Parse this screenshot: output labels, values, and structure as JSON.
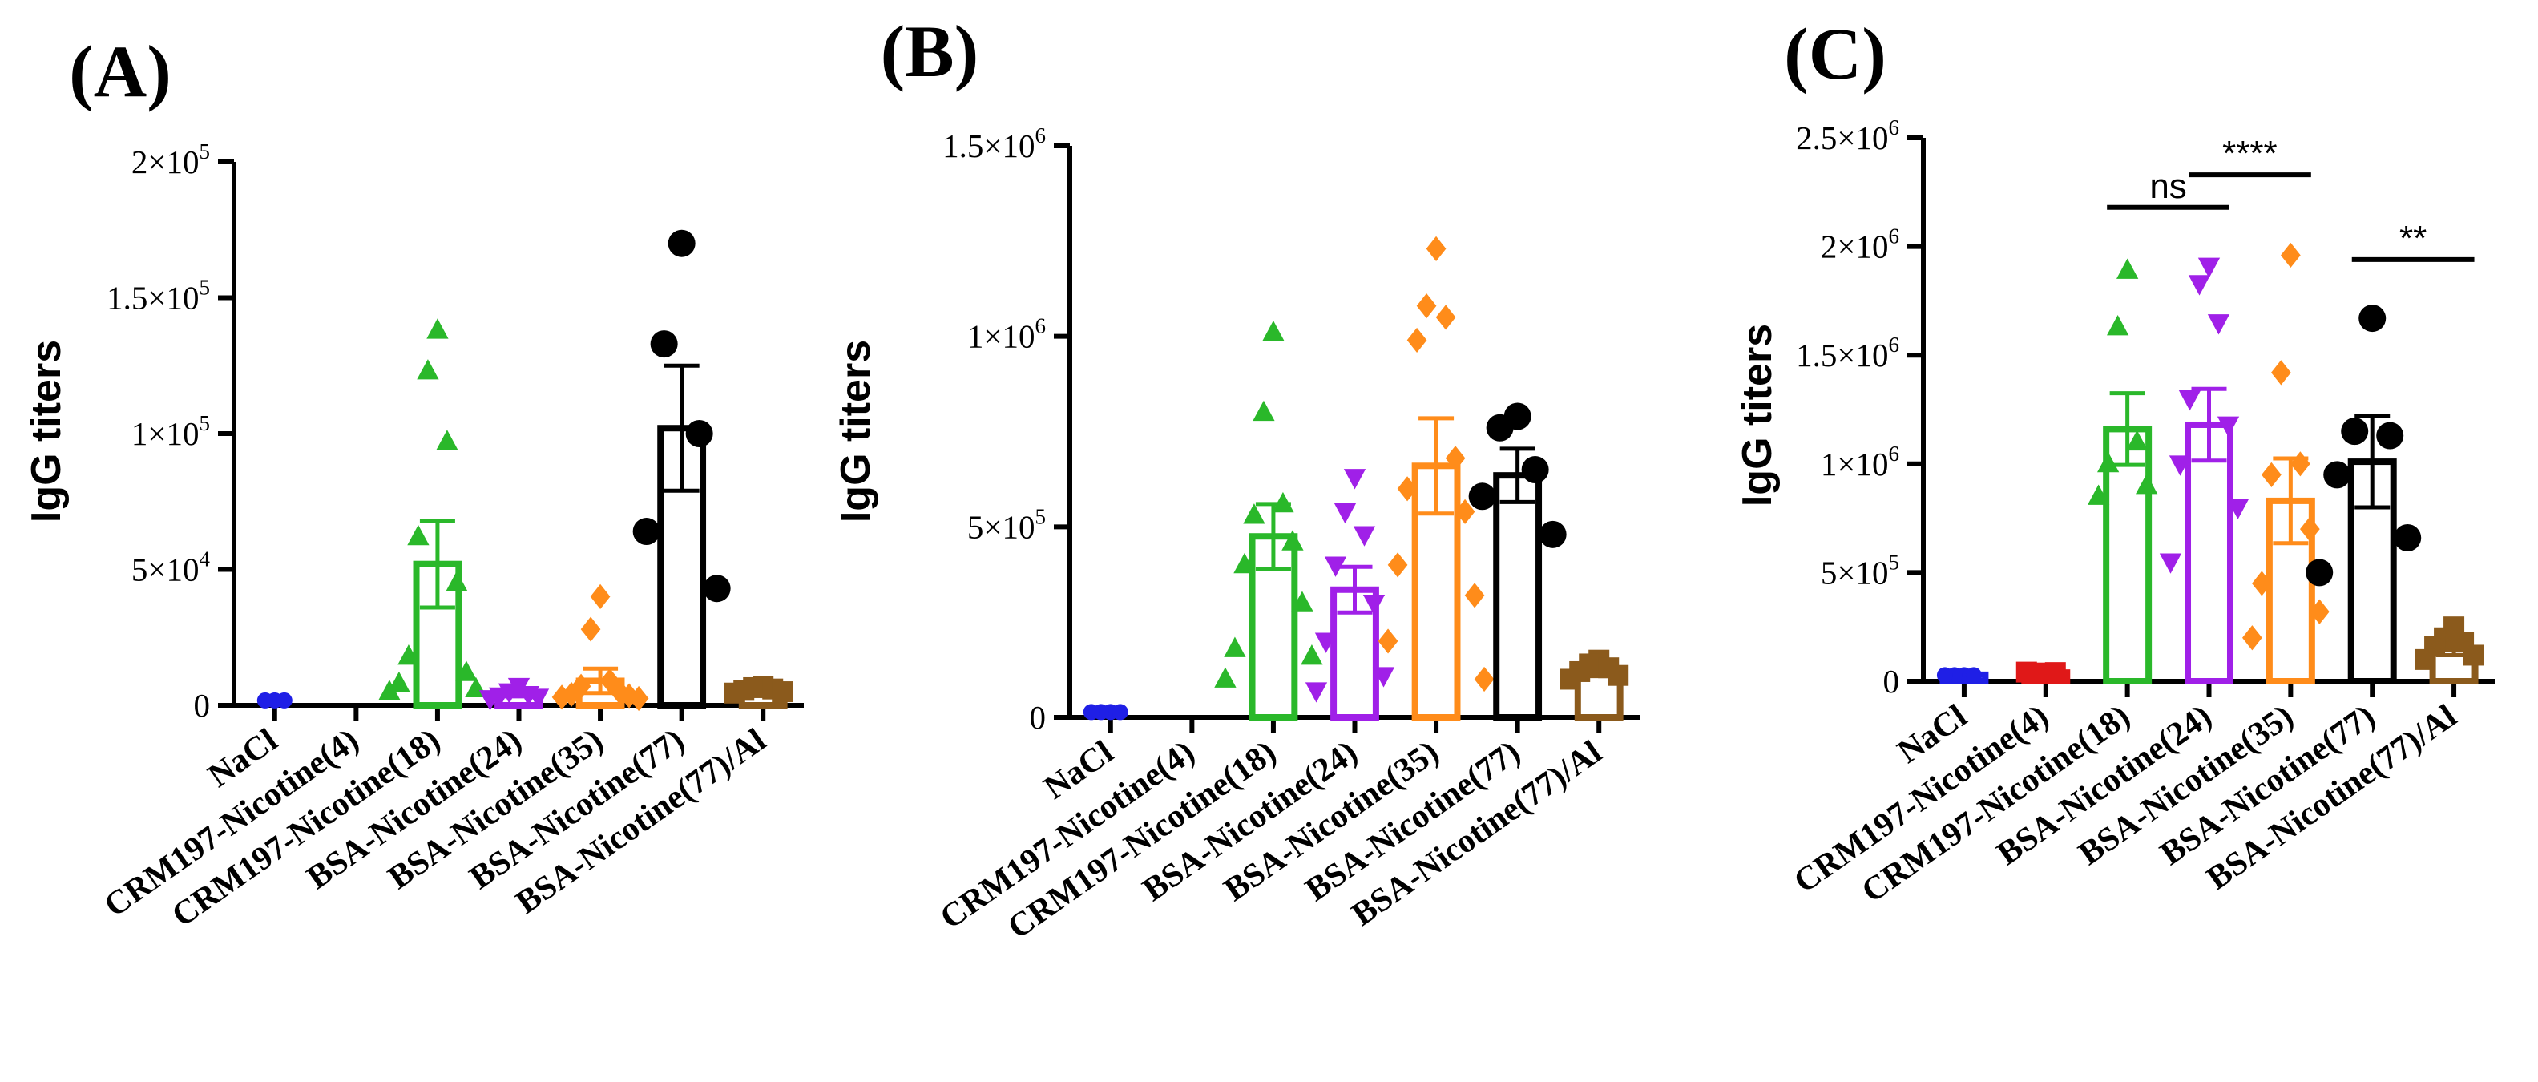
{
  "chart_data": [
    {
      "type": "bar",
      "panel": "(A)",
      "ylabel": "IgG titers",
      "ylim": [
        0,
        200000
      ],
      "yticks": [
        {
          "value": 0,
          "mant": "0",
          "exp": ""
        },
        {
          "value": 50000,
          "mant": "5×10",
          "exp": "4"
        },
        {
          "value": 100000,
          "mant": "1×10",
          "exp": "5"
        },
        {
          "value": 150000,
          "mant": "1.5×10",
          "exp": "5"
        },
        {
          "value": 200000,
          "mant": "2×10",
          "exp": "5"
        }
      ],
      "categories": [
        "NaCl",
        "CRM197-Nicotine(4)",
        "CRM197-Nicotine(18)",
        "BSA-Nicotine(24)",
        "BSA-Nicotine(35)",
        "BSA-Nicotine(77)",
        "BSA-Nicotine(77)/Al"
      ],
      "colors": [
        "#1f1fe6",
        "#e01818",
        "#2ab82a",
        "#a020e8",
        "#ff8c1a",
        "#000000",
        "#8b5a1c"
      ],
      "markers": [
        "circle",
        "circle",
        "triangle",
        "triangle-down",
        "diamond",
        "circle",
        "square"
      ],
      "means": [
        2000,
        null,
        52000,
        4500,
        9000,
        102000,
        6000
      ],
      "sems": [
        0,
        null,
        16000,
        1200,
        4500,
        23000,
        500
      ],
      "points": [
        [
          1800,
          1800,
          1800
        ],
        [],
        [
          138000,
          123000,
          97000,
          62000,
          45000,
          18000,
          12000,
          8000,
          6000,
          5000
        ],
        [
          7000,
          5000,
          4000,
          3500,
          3000,
          2500
        ],
        [
          40000,
          28000,
          9000,
          7000,
          5000,
          4000,
          3500,
          3000,
          2500
        ],
        [
          170000,
          133000,
          100000,
          64000,
          43000
        ],
        [
          7000,
          6500,
          6000,
          5500,
          5000,
          4500
        ]
      ],
      "comparisons": []
    },
    {
      "type": "bar",
      "panel": "(B)",
      "ylabel": "IgG titers",
      "ylim": [
        0,
        1500000
      ],
      "yticks": [
        {
          "value": 0,
          "mant": "0",
          "exp": ""
        },
        {
          "value": 500000,
          "mant": "5×10",
          "exp": "5"
        },
        {
          "value": 1000000,
          "mant": "1×10",
          "exp": "6"
        },
        {
          "value": 1500000,
          "mant": "1.5×10",
          "exp": "6"
        }
      ],
      "categories": [
        "NaCl",
        "CRM197-Nicotine(4)",
        "CRM197-Nicotine(18)",
        "BSA-Nicotine(24)",
        "BSA-Nicotine(35)",
        "BSA-Nicotine(77)",
        "BSA-Nicotine(77)/Al"
      ],
      "colors": [
        "#1f1fe6",
        "#e01818",
        "#2ab82a",
        "#a020e8",
        "#ff8c1a",
        "#000000",
        "#8b5a1c"
      ],
      "markers": [
        "circle",
        "circle",
        "triangle",
        "triangle-down",
        "diamond",
        "circle",
        "square"
      ],
      "means": [
        15000,
        null,
        475000,
        335000,
        660000,
        635000,
        120000
      ],
      "sems": [
        0,
        null,
        85000,
        60000,
        125000,
        70000,
        12000
      ],
      "points": [
        [
          14000,
          14000,
          14000,
          14000
        ],
        [],
        [
          1010000,
          800000,
          560000,
          530000,
          460000,
          400000,
          300000,
          180000,
          160000,
          100000
        ],
        [
          630000,
          540000,
          480000,
          400000,
          300000,
          200000,
          110000,
          70000
        ],
        [
          1230000,
          1080000,
          1050000,
          990000,
          680000,
          600000,
          540000,
          400000,
          320000,
          200000,
          100000
        ],
        [
          790000,
          760000,
          650000,
          580000,
          480000
        ],
        [
          150000,
          140000,
          130000,
          120000,
          110000,
          100000
        ]
      ],
      "comparisons": []
    },
    {
      "type": "bar",
      "panel": "(C)",
      "ylabel": "IgG titers",
      "ylim": [
        0,
        2500000
      ],
      "yticks": [
        {
          "value": 0,
          "mant": "0",
          "exp": ""
        },
        {
          "value": 500000,
          "mant": "5×10",
          "exp": "5"
        },
        {
          "value": 1000000,
          "mant": "1×10",
          "exp": "6"
        },
        {
          "value": 1500000,
          "mant": "1.5×10",
          "exp": "6"
        },
        {
          "value": 2000000,
          "mant": "2×10",
          "exp": "6"
        },
        {
          "value": 2500000,
          "mant": "2.5×10",
          "exp": "6"
        }
      ],
      "categories": [
        "NaCl",
        "CRM197-Nicotine(4)",
        "CRM197-Nicotine(18)",
        "BSA-Nicotine(24)",
        "BSA-Nicotine(35)",
        "BSA-Nicotine(77)",
        "BSA-Nicotine(77)/Al"
      ],
      "colors": [
        "#1f1fe6",
        "#e01818",
        "#2ab82a",
        "#a020e8",
        "#ff8c1a",
        "#000000",
        "#8b5a1c"
      ],
      "markers": [
        "circle",
        "square",
        "triangle",
        "triangle-down",
        "diamond",
        "circle",
        "square"
      ],
      "means": [
        30000,
        40000,
        1160000,
        1180000,
        830000,
        1010000,
        150000
      ],
      "sems": [
        0,
        0,
        165000,
        165000,
        195000,
        210000,
        30000
      ],
      "points": [
        [
          28000,
          28000,
          28000,
          28000
        ],
        [
          35000,
          38000,
          40000,
          42000
        ],
        [
          1890000,
          1630000,
          1100000,
          1000000,
          900000,
          850000
        ],
        [
          1910000,
          1830000,
          1650000,
          1300000,
          1180000,
          1000000,
          800000,
          550000
        ],
        [
          1960000,
          1420000,
          1000000,
          950000,
          700000,
          450000,
          320000,
          200000
        ],
        [
          1670000,
          1150000,
          1130000,
          950000,
          660000,
          500000
        ],
        [
          250000,
          200000,
          180000,
          160000,
          120000,
          100000
        ]
      ],
      "comparisons": [
        {
          "from": 2,
          "to": 3,
          "label": "ns",
          "y": 2180000
        },
        {
          "from": 3,
          "to": 4,
          "label": "****",
          "y": 2330000
        },
        {
          "from": 5,
          "to": 6,
          "label": "**",
          "y": 1940000
        }
      ]
    }
  ]
}
